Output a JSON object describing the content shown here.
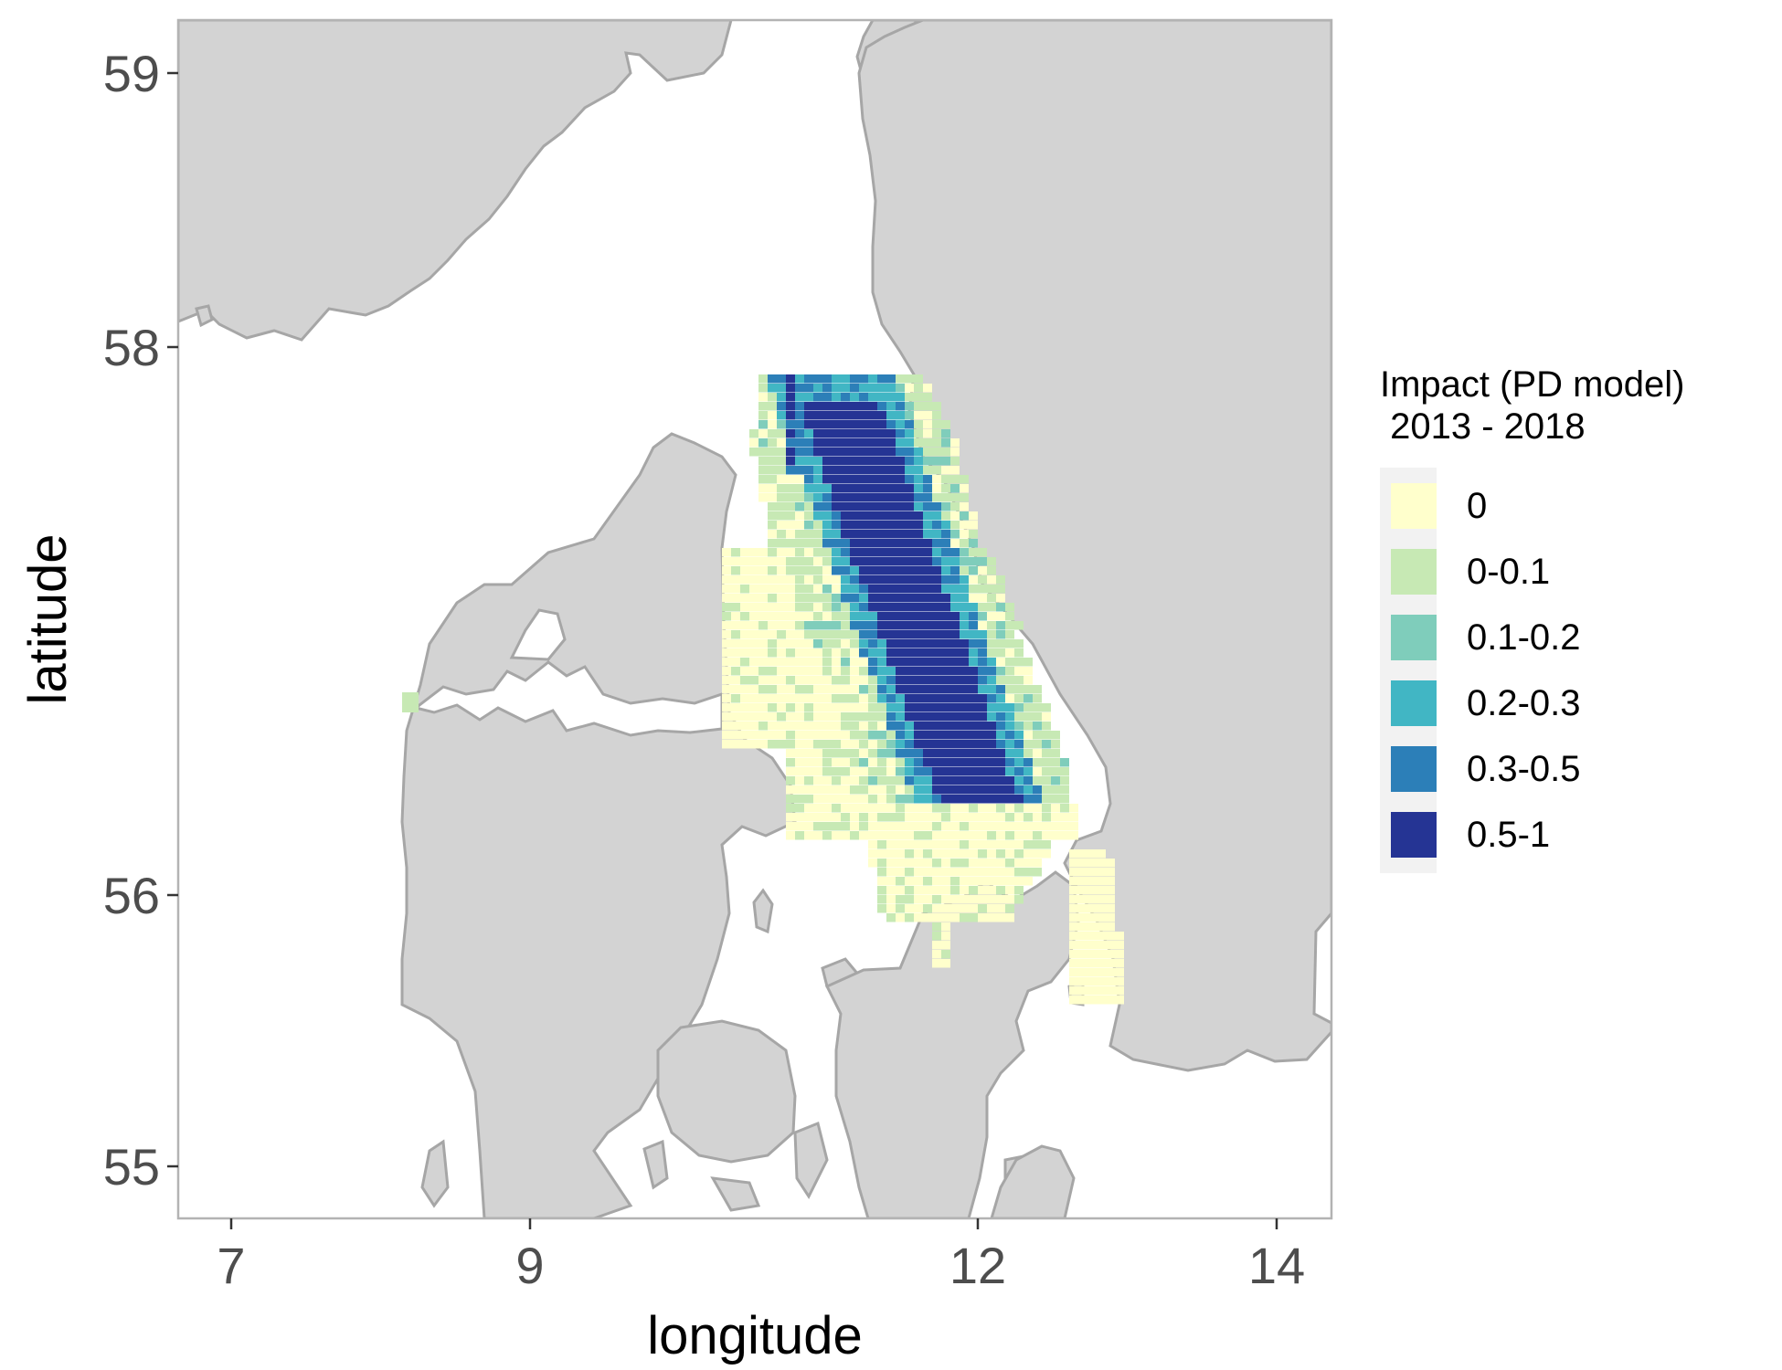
{
  "axes": {
    "x_label": "longitude",
    "y_label": "latitude",
    "x_ticks": [
      "7",
      "9",
      "12",
      "14"
    ],
    "y_ticks": [
      "59",
      "58",
      "56",
      "55"
    ],
    "x_range": [
      6.65,
      14.35
    ],
    "y_range": [
      54.85,
      59.25
    ]
  },
  "legend": {
    "title": "Impact (PD model)\n 2013 - 2018",
    "entries": [
      {
        "label": "0",
        "color": "#ffffcc"
      },
      {
        "label": "0-0.1",
        "color": "#c7e9b4"
      },
      {
        "label": "0.1-0.2",
        "color": "#7fcdbb"
      },
      {
        "label": "0.2-0.3",
        "color": "#41b6c4"
      },
      {
        "label": "0.3-0.5",
        "color": "#2c7fb8"
      },
      {
        "label": "0.5-1",
        "color": "#253494"
      }
    ]
  },
  "colors": {
    "land": "#d3d3d3",
    "coast": "#a6a6a6",
    "panel_border": "#b3b3b3",
    "water": "#ffffff"
  }
}
